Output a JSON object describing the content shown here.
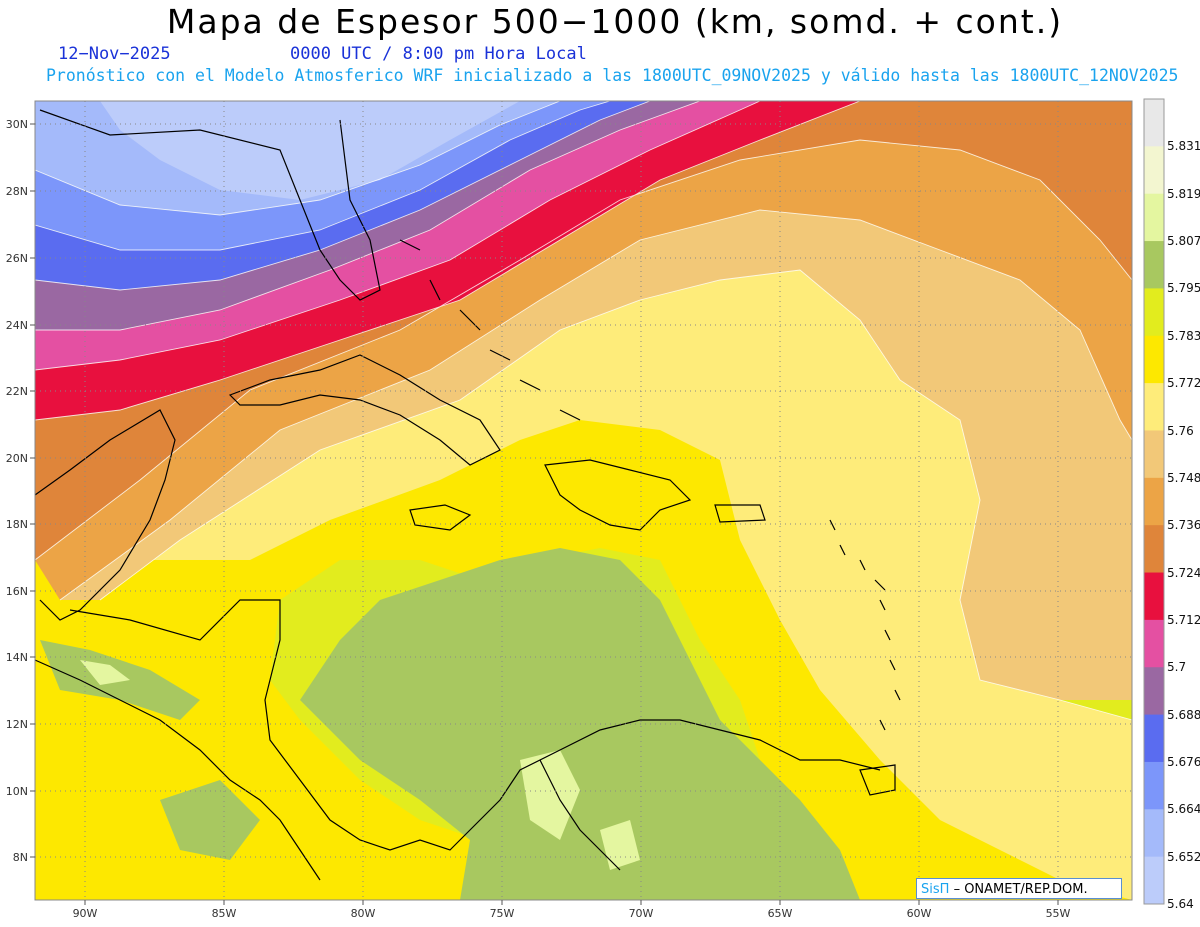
{
  "header": {
    "title": "Mapa de Espesor 500−1000 (km, somd. + cont.)",
    "date": "12−Nov−2025",
    "time": "0000 UTC / 8:00 pm Hora Local",
    "forecast": "Pronóstico con el Modelo Atmosferico WRF inicializado a las 1800UTC_09NOV2025 y válido hasta las  1800UTC_12NOV2025"
  },
  "map": {
    "region": "Caribbean",
    "lon_range": [
      -92,
      -53
    ],
    "lat_range": [
      6.5,
      30.5
    ],
    "lat_labels": [
      "30N",
      "28N",
      "26N",
      "24N",
      "22N",
      "20N",
      "18N",
      "16N",
      "14N",
      "12N",
      "10N",
      "8N"
    ],
    "lon_labels": [
      "90W",
      "85W",
      "80W",
      "75W",
      "70W",
      "65W",
      "60W",
      "55W"
    ],
    "grid": "dotted"
  },
  "colorbar": {
    "labels": [
      "5.831",
      "5.819",
      "5.807",
      "5.795",
      "5.783",
      "5.772",
      "5.76",
      "5.748",
      "5.736",
      "5.724",
      "5.712",
      "5.7",
      "5.688",
      "5.676",
      "5.664",
      "5.652",
      "5.64"
    ],
    "colors": [
      "#e8e8e8",
      "#f3f6d0",
      "#e4f6a0",
      "#a8c860",
      "#e2ec1e",
      "#fde800",
      "#feec7a",
      "#f2c878",
      "#eca446",
      "#df853a",
      "#e8103e",
      "#e450a2",
      "#9a68a2",
      "#5a6cf0",
      "#7c96fa",
      "#a4bafa",
      "#bcccfa"
    ]
  },
  "credit": {
    "sis": "SisΠ",
    "rest": "– ONAMET/REP.DOM."
  }
}
